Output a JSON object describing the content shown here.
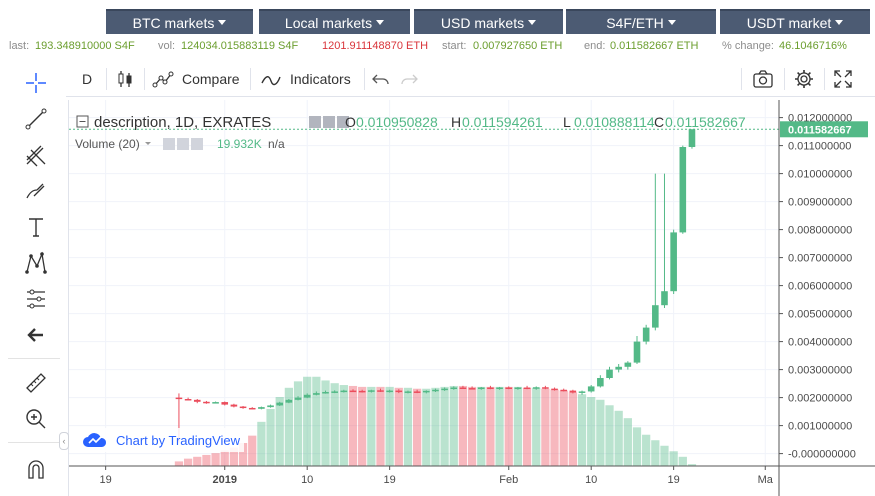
{
  "tabs": [
    {
      "label": "BTC markets"
    },
    {
      "label": "Local markets"
    },
    {
      "label": "USD markets"
    },
    {
      "label": "S4F/ETH"
    },
    {
      "label": "USDT market"
    }
  ],
  "stats": {
    "last_label": "last:",
    "last_value": "193.348910000 S4F",
    "vol_label": "vol:",
    "vol_s4f": "124034.015883119 S4F",
    "vol_eth": "1201.911148870 ETH",
    "start_label": "start:",
    "start_value": "0.007927650 ETH",
    "end_label": "end:",
    "end_value": "0.011582667 ETH",
    "change_label": "% change:",
    "change_value": "46.1046716%"
  },
  "toolbar": {
    "interval": "D",
    "compare": "Compare",
    "indicators": "Indicators"
  },
  "legend": {
    "symbol": "description, 1D, EXRATES",
    "o_label": "O",
    "o_value": "0.010950828",
    "h_label": "H",
    "h_value": "0.011594261",
    "l_label": "L",
    "l_value": "0.010888114",
    "c_label": "C",
    "c_value": "0.011582667",
    "volume_label": "Volume (20)",
    "volume_value": "19.932K",
    "volume_ma": "n/a"
  },
  "badge": {
    "text": "Chart by TradingView"
  },
  "colors": {
    "up": "#53b987",
    "down": "#eb4d5c",
    "tab_bg": "#4c5b73",
    "accent": "#2962ff"
  },
  "chart_data": {
    "type": "candlestick",
    "y_axis": {
      "ticks": [
        "0.012000000",
        "0.011000000",
        "0.010000000",
        "0.009000000",
        "0.008000000",
        "0.007000000",
        "0.006000000",
        "0.005000000",
        "0.004000000",
        "0.003000000",
        "0.002000000",
        "0.001000000",
        "-0.000000000"
      ],
      "ylim": [
        -0.0003,
        0.0122
      ],
      "last_price": "0.011582667"
    },
    "x_axis": {
      "ticks": [
        {
          "label": "19",
          "day": 0
        },
        {
          "label": "2019",
          "day": 13,
          "bold": true
        },
        {
          "label": "10",
          "day": 22
        },
        {
          "label": "19",
          "day": 31
        },
        {
          "label": "Feb",
          "day": 44
        },
        {
          "label": "10",
          "day": 53
        },
        {
          "label": "19",
          "day": 62
        },
        {
          "label": "Ma",
          "day": 72
        }
      ],
      "xlim": [
        -4,
        73.5
      ]
    },
    "candles": [
      {
        "d": 8,
        "o": 0.002,
        "h": 0.00215,
        "l": 0.0004,
        "c": 0.00195
      },
      {
        "d": 9,
        "o": 0.00195,
        "h": 0.002,
        "l": 0.0019,
        "c": 0.00192
      },
      {
        "d": 10,
        "o": 0.00192,
        "h": 0.00195,
        "l": 0.0018,
        "c": 0.00185
      },
      {
        "d": 11,
        "o": 0.00185,
        "h": 0.00188,
        "l": 0.00178,
        "c": 0.00182
      },
      {
        "d": 12,
        "o": 0.00182,
        "h": 0.00186,
        "l": 0.0018,
        "c": 0.00184
      },
      {
        "d": 13,
        "o": 0.00184,
        "h": 0.00186,
        "l": 0.00172,
        "c": 0.00175
      },
      {
        "d": 14,
        "o": 0.00175,
        "h": 0.00178,
        "l": 0.00165,
        "c": 0.00168
      },
      {
        "d": 15,
        "o": 0.00168,
        "h": 0.0017,
        "l": 0.0016,
        "c": 0.00163
      },
      {
        "d": 16,
        "o": 0.00163,
        "h": 0.00166,
        "l": 0.00158,
        "c": 0.0016
      },
      {
        "d": 17,
        "o": 0.0016,
        "h": 0.00168,
        "l": 0.00158,
        "c": 0.00166
      },
      {
        "d": 18,
        "o": 0.00166,
        "h": 0.00175,
        "l": 0.00164,
        "c": 0.00172
      },
      {
        "d": 19,
        "o": 0.00172,
        "h": 0.00185,
        "l": 0.0017,
        "c": 0.00182
      },
      {
        "d": 20,
        "o": 0.00182,
        "h": 0.00195,
        "l": 0.0018,
        "c": 0.00192
      },
      {
        "d": 21,
        "o": 0.00192,
        "h": 0.00205,
        "l": 0.0019,
        "c": 0.002
      },
      {
        "d": 22,
        "o": 0.002,
        "h": 0.00215,
        "l": 0.00198,
        "c": 0.0021
      },
      {
        "d": 23,
        "o": 0.0021,
        "h": 0.00222,
        "l": 0.00208,
        "c": 0.00216
      },
      {
        "d": 24,
        "o": 0.00216,
        "h": 0.00225,
        "l": 0.00214,
        "c": 0.0022
      },
      {
        "d": 25,
        "o": 0.0022,
        "h": 0.00226,
        "l": 0.00216,
        "c": 0.00222
      },
      {
        "d": 26,
        "o": 0.00222,
        "h": 0.00228,
        "l": 0.00218,
        "c": 0.00225
      },
      {
        "d": 27,
        "o": 0.00225,
        "h": 0.0023,
        "l": 0.0022,
        "c": 0.00224
      },
      {
        "d": 28,
        "o": 0.00224,
        "h": 0.00228,
        "l": 0.00218,
        "c": 0.00222
      },
      {
        "d": 29,
        "o": 0.00222,
        "h": 0.00228,
        "l": 0.00218,
        "c": 0.00226
      },
      {
        "d": 30,
        "o": 0.00226,
        "h": 0.00232,
        "l": 0.0022,
        "c": 0.00222
      },
      {
        "d": 31,
        "o": 0.00222,
        "h": 0.00228,
        "l": 0.00218,
        "c": 0.00225
      },
      {
        "d": 32,
        "o": 0.00225,
        "h": 0.0023,
        "l": 0.00216,
        "c": 0.0022
      },
      {
        "d": 33,
        "o": 0.0022,
        "h": 0.00225,
        "l": 0.00215,
        "c": 0.00222
      },
      {
        "d": 34,
        "o": 0.00222,
        "h": 0.00228,
        "l": 0.00216,
        "c": 0.00219
      },
      {
        "d": 35,
        "o": 0.00219,
        "h": 0.00226,
        "l": 0.00215,
        "c": 0.00224
      },
      {
        "d": 36,
        "o": 0.00224,
        "h": 0.00232,
        "l": 0.0022,
        "c": 0.00228
      },
      {
        "d": 37,
        "o": 0.00228,
        "h": 0.00236,
        "l": 0.00224,
        "c": 0.00232
      },
      {
        "d": 38,
        "o": 0.00232,
        "h": 0.0024,
        "l": 0.00228,
        "c": 0.00236
      },
      {
        "d": 39,
        "o": 0.00236,
        "h": 0.00242,
        "l": 0.00232,
        "c": 0.00234
      },
      {
        "d": 40,
        "o": 0.00234,
        "h": 0.0024,
        "l": 0.0023,
        "c": 0.00232
      },
      {
        "d": 41,
        "o": 0.00232,
        "h": 0.00238,
        "l": 0.00228,
        "c": 0.00236
      },
      {
        "d": 42,
        "o": 0.00236,
        "h": 0.00242,
        "l": 0.0023,
        "c": 0.00233
      },
      {
        "d": 43,
        "o": 0.00233,
        "h": 0.00238,
        "l": 0.00228,
        "c": 0.00236
      },
      {
        "d": 44,
        "o": 0.00236,
        "h": 0.0024,
        "l": 0.0023,
        "c": 0.00232
      },
      {
        "d": 45,
        "o": 0.00232,
        "h": 0.00238,
        "l": 0.00228,
        "c": 0.00236
      },
      {
        "d": 46,
        "o": 0.00236,
        "h": 0.00242,
        "l": 0.0023,
        "c": 0.00233
      },
      {
        "d": 47,
        "o": 0.00233,
        "h": 0.0024,
        "l": 0.00228,
        "c": 0.00237
      },
      {
        "d": 48,
        "o": 0.00237,
        "h": 0.00242,
        "l": 0.0023,
        "c": 0.00232
      },
      {
        "d": 49,
        "o": 0.00232,
        "h": 0.00236,
        "l": 0.00225,
        "c": 0.00228
      },
      {
        "d": 50,
        "o": 0.00228,
        "h": 0.00232,
        "l": 0.00222,
        "c": 0.00225
      },
      {
        "d": 51,
        "o": 0.00225,
        "h": 0.00228,
        "l": 0.00215,
        "c": 0.00218
      },
      {
        "d": 52,
        "o": 0.00218,
        "h": 0.00225,
        "l": 0.0021,
        "c": 0.00222
      },
      {
        "d": 53,
        "o": 0.00222,
        "h": 0.00245,
        "l": 0.00218,
        "c": 0.0024
      },
      {
        "d": 54,
        "o": 0.0024,
        "h": 0.0028,
        "l": 0.00236,
        "c": 0.0027
      },
      {
        "d": 55,
        "o": 0.0027,
        "h": 0.0031,
        "l": 0.00265,
        "c": 0.003
      },
      {
        "d": 56,
        "o": 0.003,
        "h": 0.0032,
        "l": 0.0029,
        "c": 0.0031
      },
      {
        "d": 57,
        "o": 0.0031,
        "h": 0.0033,
        "l": 0.003,
        "c": 0.00325
      },
      {
        "d": 58,
        "o": 0.00325,
        "h": 0.0042,
        "l": 0.0032,
        "c": 0.004
      },
      {
        "d": 59,
        "o": 0.004,
        "h": 0.0046,
        "l": 0.0039,
        "c": 0.0045
      },
      {
        "d": 60,
        "o": 0.0045,
        "h": 0.01,
        "l": 0.0044,
        "c": 0.0053
      },
      {
        "d": 61,
        "o": 0.0053,
        "h": 0.01,
        "l": 0.0052,
        "c": 0.0058
      },
      {
        "d": 62,
        "o": 0.0058,
        "h": 0.008,
        "l": 0.0057,
        "c": 0.0079
      },
      {
        "d": 63,
        "o": 0.0079,
        "h": 0.011,
        "l": 0.00785,
        "c": 0.01095
      },
      {
        "d": 64,
        "o": 0.01095,
        "h": 0.01159,
        "l": 0.01089,
        "c": 0.01158
      }
    ],
    "volumes": [
      {
        "d": 8,
        "v": 0.05,
        "up": false
      },
      {
        "d": 9,
        "v": 0.08,
        "up": false
      },
      {
        "d": 10,
        "v": 0.1,
        "up": false
      },
      {
        "d": 11,
        "v": 0.12,
        "up": false
      },
      {
        "d": 12,
        "v": 0.14,
        "up": false
      },
      {
        "d": 13,
        "v": 0.17,
        "up": false
      },
      {
        "d": 14,
        "v": 0.2,
        "up": false
      },
      {
        "d": 15,
        "v": 0.25,
        "up": false
      },
      {
        "d": 16,
        "v": 0.33,
        "up": false
      },
      {
        "d": 17,
        "v": 0.48,
        "up": true
      },
      {
        "d": 18,
        "v": 0.62,
        "up": true
      },
      {
        "d": 19,
        "v": 0.75,
        "up": true
      },
      {
        "d": 20,
        "v": 0.85,
        "up": true
      },
      {
        "d": 21,
        "v": 0.92,
        "up": true
      },
      {
        "d": 22,
        "v": 0.97,
        "up": true
      },
      {
        "d": 23,
        "v": 0.97,
        "up": true
      },
      {
        "d": 24,
        "v": 0.93,
        "up": true
      },
      {
        "d": 25,
        "v": 0.9,
        "up": true
      },
      {
        "d": 26,
        "v": 0.88,
        "up": true
      },
      {
        "d": 27,
        "v": 0.87,
        "up": false
      },
      {
        "d": 28,
        "v": 0.86,
        "up": false
      },
      {
        "d": 29,
        "v": 0.86,
        "up": true
      },
      {
        "d": 30,
        "v": 0.86,
        "up": false
      },
      {
        "d": 31,
        "v": 0.86,
        "up": true
      },
      {
        "d": 32,
        "v": 0.85,
        "up": false
      },
      {
        "d": 33,
        "v": 0.85,
        "up": true
      },
      {
        "d": 34,
        "v": 0.84,
        "up": false
      },
      {
        "d": 35,
        "v": 0.84,
        "up": true
      },
      {
        "d": 36,
        "v": 0.85,
        "up": true
      },
      {
        "d": 37,
        "v": 0.86,
        "up": true
      },
      {
        "d": 38,
        "v": 0.87,
        "up": true
      },
      {
        "d": 39,
        "v": 0.87,
        "up": false
      },
      {
        "d": 40,
        "v": 0.86,
        "up": false
      },
      {
        "d": 41,
        "v": 0.86,
        "up": true
      },
      {
        "d": 42,
        "v": 0.86,
        "up": false
      },
      {
        "d": 43,
        "v": 0.86,
        "up": true
      },
      {
        "d": 44,
        "v": 0.86,
        "up": false
      },
      {
        "d": 45,
        "v": 0.86,
        "up": true
      },
      {
        "d": 46,
        "v": 0.85,
        "up": false
      },
      {
        "d": 47,
        "v": 0.85,
        "up": true
      },
      {
        "d": 48,
        "v": 0.84,
        "up": false
      },
      {
        "d": 49,
        "v": 0.83,
        "up": false
      },
      {
        "d": 50,
        "v": 0.82,
        "up": false
      },
      {
        "d": 51,
        "v": 0.8,
        "up": false
      },
      {
        "d": 52,
        "v": 0.78,
        "up": true
      },
      {
        "d": 53,
        "v": 0.75,
        "up": true
      },
      {
        "d": 54,
        "v": 0.72,
        "up": true
      },
      {
        "d": 55,
        "v": 0.66,
        "up": true
      },
      {
        "d": 56,
        "v": 0.6,
        "up": true
      },
      {
        "d": 57,
        "v": 0.52,
        "up": true
      },
      {
        "d": 58,
        "v": 0.42,
        "up": true
      },
      {
        "d": 59,
        "v": 0.34,
        "up": true
      },
      {
        "d": 60,
        "v": 0.28,
        "up": true
      },
      {
        "d": 61,
        "v": 0.22,
        "up": true
      },
      {
        "d": 62,
        "v": 0.16,
        "up": true
      },
      {
        "d": 63,
        "v": 0.1,
        "up": true
      },
      {
        "d": 64,
        "v": 0.02,
        "up": true
      }
    ]
  }
}
